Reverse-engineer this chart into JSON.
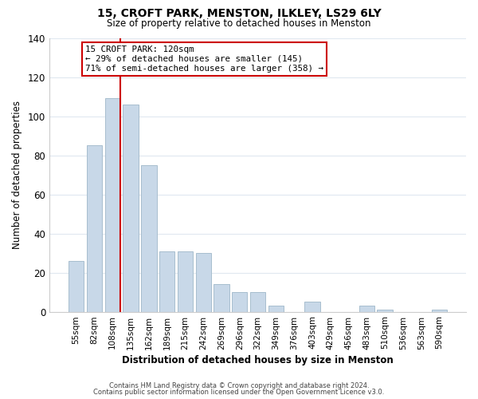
{
  "title": "15, CROFT PARK, MENSTON, ILKLEY, LS29 6LY",
  "subtitle": "Size of property relative to detached houses in Menston",
  "xlabel": "Distribution of detached houses by size in Menston",
  "ylabel": "Number of detached properties",
  "footer_line1": "Contains HM Land Registry data © Crown copyright and database right 2024.",
  "footer_line2": "Contains public sector information licensed under the Open Government Licence v3.0.",
  "bar_labels": [
    "55sqm",
    "82sqm",
    "108sqm",
    "135sqm",
    "162sqm",
    "189sqm",
    "215sqm",
    "242sqm",
    "269sqm",
    "296sqm",
    "322sqm",
    "349sqm",
    "376sqm",
    "403sqm",
    "429sqm",
    "456sqm",
    "483sqm",
    "510sqm",
    "536sqm",
    "563sqm",
    "590sqm"
  ],
  "bar_values": [
    26,
    85,
    109,
    106,
    75,
    31,
    31,
    30,
    14,
    10,
    10,
    3,
    0,
    5,
    0,
    0,
    3,
    1,
    0,
    0,
    1
  ],
  "bar_color": "#c8d8e8",
  "bar_edge_color": "#a8bece",
  "highlight_bar_index": 2,
  "vline_color": "#cc0000",
  "annotation_title": "15 CROFT PARK: 120sqm",
  "annotation_line1": "← 29% of detached houses are smaller (145)",
  "annotation_line2": "71% of semi-detached houses are larger (358) →",
  "annotation_box_color": "#ffffff",
  "annotation_box_edge": "#cc0000",
  "ylim": [
    0,
    140
  ],
  "yticks": [
    0,
    20,
    40,
    60,
    80,
    100,
    120,
    140
  ],
  "background_color": "#ffffff",
  "grid_color": "#e0e8f0"
}
